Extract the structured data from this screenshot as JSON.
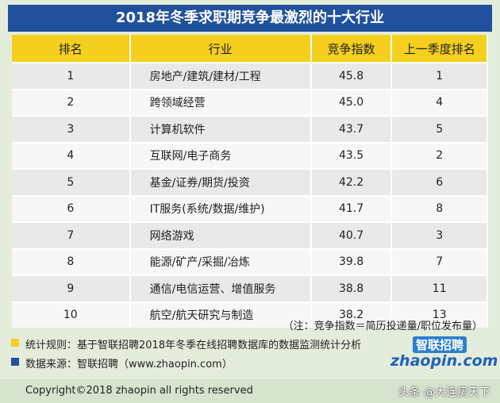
{
  "header": {
    "title": "2018年冬季求职期竞争最激烈的十大行业"
  },
  "table": {
    "columns": [
      "排名",
      "行业",
      "竞争指数",
      "上一季度排名"
    ],
    "rows": [
      [
        "1",
        "房地产/建筑/建材/工程",
        "45.8",
        "1"
      ],
      [
        "2",
        "跨领域经营",
        "45.0",
        "4"
      ],
      [
        "3",
        "计算机软件",
        "43.7",
        "5"
      ],
      [
        "4",
        "互联网/电子商务",
        "43.5",
        "2"
      ],
      [
        "5",
        "基金/证券/期货/投资",
        "42.2",
        "6"
      ],
      [
        "6",
        "IT服务(系统/数据/维护)",
        "41.7",
        "8"
      ],
      [
        "7",
        "网络游戏",
        "40.7",
        "3"
      ],
      [
        "8",
        "能源/矿产/采掘/冶炼",
        "39.8",
        "7"
      ],
      [
        "9",
        "通信/电信运营、增值服务",
        "38.8",
        "11"
      ],
      [
        "10",
        "航空/航天研究与制造",
        "38.2",
        "13"
      ]
    ]
  },
  "note": "（注：竞争指数＝简历投递量/职位发布量）",
  "rules": "统计规则：基于智联招聘2018年冬季在线招聘数据库的数据监测统计分析",
  "source": "数据来源：智联招聘（www.zhaopin.com）",
  "logo": {
    "name": "智联招聘",
    "domain": "zhaopin.com"
  },
  "footer": {
    "copyright": "Copyright©2018 zhaopin all rights reserved",
    "watermark": "头条 @大连房天下"
  }
}
